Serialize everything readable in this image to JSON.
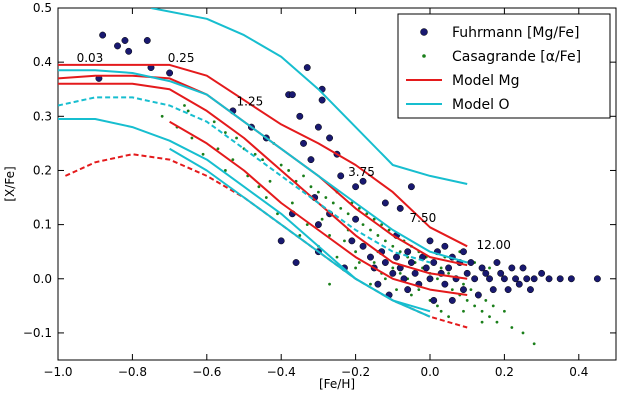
{
  "chart_data": {
    "type": "scatter",
    "xlabel": "[Fe/H]",
    "ylabel": "[X/Fe]",
    "xlim": [
      -1.0,
      0.5
    ],
    "ylim": [
      -0.15,
      0.5
    ],
    "xticks": [
      -1.0,
      -0.8,
      -0.6,
      -0.4,
      -0.2,
      0.0,
      0.2,
      0.4
    ],
    "xtick_labels": [
      "−1.0",
      "−0.8",
      "−0.6",
      "−0.4",
      "−0.2",
      "0.0",
      "0.2",
      "0.4"
    ],
    "yticks": [
      -0.1,
      0.0,
      0.1,
      0.2,
      0.3,
      0.4,
      0.5
    ],
    "ytick_labels": [
      "−0.1",
      "0.0",
      "0.1",
      "0.2",
      "0.3",
      "0.4",
      "0.5"
    ],
    "grid": false,
    "legend_position": "top-right",
    "annotations": [
      {
        "text": "0.03",
        "x": -0.95,
        "y": 0.4
      },
      {
        "text": "0.25",
        "x": -0.705,
        "y": 0.4
      },
      {
        "text": "1.25",
        "x": -0.52,
        "y": 0.32
      },
      {
        "text": "3.75",
        "x": -0.22,
        "y": 0.19
      },
      {
        "text": "7.50",
        "x": -0.055,
        "y": 0.105
      },
      {
        "text": "12.00",
        "x": 0.125,
        "y": 0.055
      }
    ],
    "series": [
      {
        "name": "Fuhrmann [Mg/Fe]",
        "kind": "scatter",
        "marker": "circle",
        "color": "#191970",
        "points": [
          [
            -0.88,
            0.45
          ],
          [
            -0.84,
            0.43
          ],
          [
            -0.82,
            0.44
          ],
          [
            -0.81,
            0.42
          ],
          [
            -0.76,
            0.44
          ],
          [
            -0.75,
            0.39
          ],
          [
            -0.7,
            0.38
          ],
          [
            -0.89,
            0.37
          ],
          [
            -0.53,
            0.31
          ],
          [
            -0.48,
            0.28
          ],
          [
            -0.44,
            0.26
          ],
          [
            -0.38,
            0.34
          ],
          [
            -0.37,
            0.34
          ],
          [
            -0.35,
            0.3
          ],
          [
            -0.33,
            0.39
          ],
          [
            -0.29,
            0.35
          ],
          [
            -0.29,
            0.33
          ],
          [
            -0.3,
            0.28
          ],
          [
            -0.27,
            0.26
          ],
          [
            -0.34,
            0.25
          ],
          [
            -0.32,
            0.22
          ],
          [
            -0.25,
            0.23
          ],
          [
            -0.24,
            0.19
          ],
          [
            -0.2,
            0.17
          ],
          [
            -0.18,
            0.18
          ],
          [
            -0.05,
            0.17
          ],
          [
            -0.31,
            0.15
          ],
          [
            -0.37,
            0.12
          ],
          [
            -0.3,
            0.1
          ],
          [
            -0.27,
            0.12
          ],
          [
            -0.2,
            0.11
          ],
          [
            -0.12,
            0.14
          ],
          [
            -0.08,
            0.13
          ],
          [
            -0.4,
            0.07
          ],
          [
            -0.3,
            0.05
          ],
          [
            -0.36,
            0.03
          ],
          [
            -0.21,
            0.07
          ],
          [
            -0.18,
            0.06
          ],
          [
            -0.16,
            0.04
          ],
          [
            -0.15,
            0.02
          ],
          [
            -0.13,
            0.05
          ],
          [
            -0.12,
            0.03
          ],
          [
            -0.1,
            0.01
          ],
          [
            -0.09,
            0.04
          ],
          [
            -0.08,
            0.02
          ],
          [
            -0.07,
            0.0
          ],
          [
            -0.06,
            0.05
          ],
          [
            -0.05,
            0.03
          ],
          [
            -0.04,
            0.01
          ],
          [
            -0.03,
            -0.01
          ],
          [
            -0.02,
            0.04
          ],
          [
            -0.01,
            0.02
          ],
          [
            0.0,
            0.0
          ],
          [
            0.01,
            0.03
          ],
          [
            0.02,
            0.05
          ],
          [
            0.03,
            0.01
          ],
          [
            0.04,
            -0.01
          ],
          [
            0.05,
            0.02
          ],
          [
            0.06,
            0.04
          ],
          [
            0.07,
            0.0
          ],
          [
            0.08,
            0.03
          ],
          [
            0.09,
            -0.02
          ],
          [
            0.1,
            0.01
          ],
          [
            0.11,
            0.03
          ],
          [
            0.12,
            0.0
          ],
          [
            0.13,
            -0.03
          ],
          [
            0.14,
            0.02
          ],
          [
            0.15,
            0.01
          ],
          [
            0.16,
            0.0
          ],
          [
            0.17,
            -0.02
          ],
          [
            0.18,
            0.03
          ],
          [
            0.19,
            0.01
          ],
          [
            0.2,
            0.0
          ],
          [
            0.21,
            -0.02
          ],
          [
            0.22,
            0.02
          ],
          [
            0.23,
            0.0
          ],
          [
            0.24,
            -0.01
          ],
          [
            0.25,
            0.02
          ],
          [
            0.26,
            0.0
          ],
          [
            0.27,
            -0.02
          ],
          [
            0.28,
            0.0
          ],
          [
            0.3,
            0.01
          ],
          [
            0.32,
            0.0
          ],
          [
            0.35,
            0.0
          ],
          [
            0.38,
            0.0
          ],
          [
            0.45,
            0.0
          ],
          [
            -0.14,
            -0.01
          ],
          [
            -0.11,
            -0.03
          ],
          [
            -0.06,
            -0.02
          ],
          [
            0.01,
            -0.04
          ],
          [
            0.06,
            -0.04
          ],
          [
            -0.23,
            0.02
          ],
          [
            -0.09,
            0.08
          ],
          [
            0.0,
            0.07
          ],
          [
            0.04,
            0.06
          ],
          [
            0.09,
            0.05
          ]
        ]
      },
      {
        "name": "Casagrande [α/Fe]",
        "kind": "scatter",
        "marker": "small-dot",
        "color": "#1a7f1a",
        "points": [
          [
            -0.65,
            0.31
          ],
          [
            -0.58,
            0.29
          ],
          [
            -0.55,
            0.27
          ],
          [
            -0.52,
            0.26
          ],
          [
            -0.5,
            0.24
          ],
          [
            -0.47,
            0.23
          ],
          [
            -0.45,
            0.22
          ],
          [
            -0.42,
            0.25
          ],
          [
            -0.4,
            0.21
          ],
          [
            -0.38,
            0.2
          ],
          [
            -0.36,
            0.18
          ],
          [
            -0.34,
            0.19
          ],
          [
            -0.32,
            0.17
          ],
          [
            -0.3,
            0.16
          ],
          [
            -0.28,
            0.15
          ],
          [
            -0.26,
            0.14
          ],
          [
            -0.25,
            0.16
          ],
          [
            -0.24,
            0.13
          ],
          [
            -0.22,
            0.12
          ],
          [
            -0.21,
            0.14
          ],
          [
            -0.2,
            0.11
          ],
          [
            -0.19,
            0.13
          ],
          [
            -0.18,
            0.1
          ],
          [
            -0.17,
            0.12
          ],
          [
            -0.16,
            0.09
          ],
          [
            -0.15,
            0.11
          ],
          [
            -0.14,
            0.08
          ],
          [
            -0.13,
            0.1
          ],
          [
            -0.12,
            0.07
          ],
          [
            -0.11,
            0.09
          ],
          [
            -0.1,
            0.06
          ],
          [
            -0.09,
            0.08
          ],
          [
            -0.08,
            0.05
          ],
          [
            -0.07,
            0.07
          ],
          [
            -0.06,
            0.04
          ],
          [
            -0.05,
            0.06
          ],
          [
            -0.04,
            0.03
          ],
          [
            -0.03,
            0.05
          ],
          [
            -0.02,
            0.02
          ],
          [
            -0.01,
            0.04
          ],
          [
            0.0,
            0.01
          ],
          [
            0.01,
            0.03
          ],
          [
            0.02,
            0.0
          ],
          [
            0.03,
            0.02
          ],
          [
            0.04,
            -0.01
          ],
          [
            0.05,
            0.01
          ],
          [
            0.06,
            -0.02
          ],
          [
            0.07,
            0.0
          ],
          [
            0.08,
            -0.03
          ],
          [
            0.09,
            -0.01
          ],
          [
            0.1,
            -0.04
          ],
          [
            0.11,
            -0.02
          ],
          [
            0.12,
            -0.05
          ],
          [
            0.13,
            -0.03
          ],
          [
            0.14,
            -0.06
          ],
          [
            0.15,
            -0.04
          ],
          [
            0.16,
            -0.07
          ],
          [
            0.17,
            -0.05
          ],
          [
            0.18,
            -0.08
          ],
          [
            0.2,
            -0.06
          ],
          [
            0.22,
            -0.09
          ],
          [
            0.25,
            -0.1
          ],
          [
            0.28,
            -0.12
          ],
          [
            -0.27,
            -0.01
          ],
          [
            -0.2,
            0.05
          ],
          [
            -0.15,
            0.03
          ],
          [
            -0.1,
            0.02
          ],
          [
            -0.06,
            0.0
          ],
          [
            -0.03,
            -0.02
          ],
          [
            0.0,
            -0.04
          ],
          [
            0.03,
            -0.06
          ],
          [
            -0.35,
            0.08
          ],
          [
            -0.3,
            0.06
          ],
          [
            -0.25,
            0.04
          ],
          [
            -0.22,
            0.09
          ],
          [
            -0.18,
            0.06
          ],
          [
            -0.14,
            0.05
          ],
          [
            -0.12,
            0.0
          ],
          [
            -0.08,
            0.01
          ],
          [
            -0.44,
            0.15
          ],
          [
            -0.41,
            0.12
          ],
          [
            -0.37,
            0.14
          ],
          [
            -0.33,
            0.1
          ],
          [
            -0.29,
            0.11
          ],
          [
            -0.27,
            0.08
          ],
          [
            -0.23,
            0.07
          ],
          [
            -0.19,
            0.03
          ],
          [
            -0.64,
            0.26
          ],
          [
            -0.61,
            0.23
          ],
          [
            -0.57,
            0.24
          ],
          [
            -0.55,
            0.2
          ],
          [
            -0.53,
            0.22
          ],
          [
            -0.49,
            0.19
          ],
          [
            -0.46,
            0.17
          ],
          [
            -0.43,
            0.18
          ],
          [
            -0.72,
            0.3
          ],
          [
            -0.68,
            0.28
          ],
          [
            -0.66,
            0.32
          ],
          [
            -0.2,
            0.02
          ],
          [
            -0.16,
            -0.01
          ],
          [
            -0.13,
            0.01
          ],
          [
            -0.09,
            -0.02
          ],
          [
            -0.05,
            -0.03
          ],
          [
            0.04,
            0.04
          ],
          [
            0.08,
            0.05
          ],
          [
            0.12,
            0.03
          ],
          [
            0.16,
            0.02
          ],
          [
            0.02,
            -0.05
          ],
          [
            0.05,
            -0.07
          ],
          [
            0.09,
            -0.06
          ],
          [
            0.14,
            -0.08
          ]
        ]
      },
      {
        "name": "Model Mg",
        "kind": "line-group",
        "color": "#e41a1c",
        "lines": [
          {
            "style": "solid",
            "x": [
              -1.0,
              -0.9,
              -0.8,
              -0.7,
              -0.6,
              -0.5,
              -0.4,
              -0.3,
              -0.2,
              -0.1,
              0.0,
              0.1
            ],
            "y": [
              0.395,
              0.395,
              0.395,
              0.395,
              0.375,
              0.33,
              0.285,
              0.25,
              0.21,
              0.16,
              0.095,
              0.06
            ]
          },
          {
            "style": "solid",
            "x": [
              -1.0,
              -0.9,
              -0.8,
              -0.7,
              -0.6,
              -0.5,
              -0.4,
              -0.3,
              -0.2,
              -0.1,
              0.0,
              0.1
            ],
            "y": [
              0.37,
              0.375,
              0.375,
              0.37,
              0.34,
              0.29,
              0.24,
              0.19,
              0.13,
              0.08,
              0.04,
              0.025
            ]
          },
          {
            "style": "solid",
            "x": [
              -1.0,
              -0.9,
              -0.8,
              -0.7,
              -0.6,
              -0.5,
              -0.4,
              -0.3,
              -0.2,
              -0.1,
              0.0,
              0.1
            ],
            "y": [
              0.36,
              0.36,
              0.36,
              0.35,
              0.31,
              0.26,
              0.2,
              0.14,
              0.08,
              0.03,
              0.01,
              0.0
            ]
          },
          {
            "style": "solid",
            "x": [
              -0.7,
              -0.6,
              -0.5,
              -0.4,
              -0.3,
              -0.2,
              -0.1,
              0.0,
              0.1
            ],
            "y": [
              0.29,
              0.25,
              0.2,
              0.14,
              0.09,
              0.04,
              0.0,
              -0.02,
              -0.03
            ]
          },
          {
            "style": "dashed",
            "x": [
              -0.98,
              -0.9,
              -0.8,
              -0.7,
              -0.6,
              -0.5,
              -0.4,
              -0.3,
              -0.2,
              -0.1,
              0.0,
              0.1
            ],
            "y": [
              0.19,
              0.215,
              0.23,
              0.22,
              0.19,
              0.15,
              0.1,
              0.05,
              0.0,
              -0.04,
              -0.07,
              -0.09
            ]
          }
        ]
      },
      {
        "name": "Model O",
        "kind": "line-group",
        "color": "#17becf",
        "lines": [
          {
            "style": "solid",
            "x": [
              -0.75,
              -0.6,
              -0.5,
              -0.4,
              -0.3,
              -0.2,
              -0.1,
              0.0,
              0.1
            ],
            "y": [
              0.5,
              0.48,
              0.45,
              0.41,
              0.35,
              0.28,
              0.21,
              0.19,
              0.175
            ]
          },
          {
            "style": "solid",
            "x": [
              -1.0,
              -0.9,
              -0.8,
              -0.7,
              -0.6,
              -0.5,
              -0.4,
              -0.3,
              -0.2,
              -0.1,
              0.0,
              0.1
            ],
            "y": [
              0.385,
              0.385,
              0.38,
              0.365,
              0.34,
              0.29,
              0.24,
              0.19,
              0.14,
              0.09,
              0.05,
              0.03
            ]
          },
          {
            "style": "dashed",
            "x": [
              -1.0,
              -0.9,
              -0.8,
              -0.7,
              -0.6,
              -0.5,
              -0.4,
              -0.3,
              -0.2,
              -0.1,
              0.0
            ],
            "y": [
              0.32,
              0.335,
              0.335,
              0.32,
              0.29,
              0.24,
              0.19,
              0.14,
              0.09,
              0.05,
              0.03
            ]
          },
          {
            "style": "solid",
            "x": [
              -1.0,
              -0.9,
              -0.8,
              -0.7,
              -0.6,
              -0.5,
              -0.4,
              -0.3,
              -0.2,
              -0.1,
              0.0
            ],
            "y": [
              0.295,
              0.295,
              0.28,
              0.255,
              0.22,
              0.17,
              0.12,
              0.06,
              0.0,
              -0.04,
              -0.06
            ]
          },
          {
            "style": "solid",
            "x": [
              -0.7,
              -0.6,
              -0.5,
              -0.4,
              -0.3,
              -0.2,
              -0.1,
              0.0
            ],
            "y": [
              0.24,
              0.2,
              0.15,
              0.1,
              0.05,
              0.0,
              -0.04,
              -0.07
            ]
          }
        ]
      }
    ]
  }
}
